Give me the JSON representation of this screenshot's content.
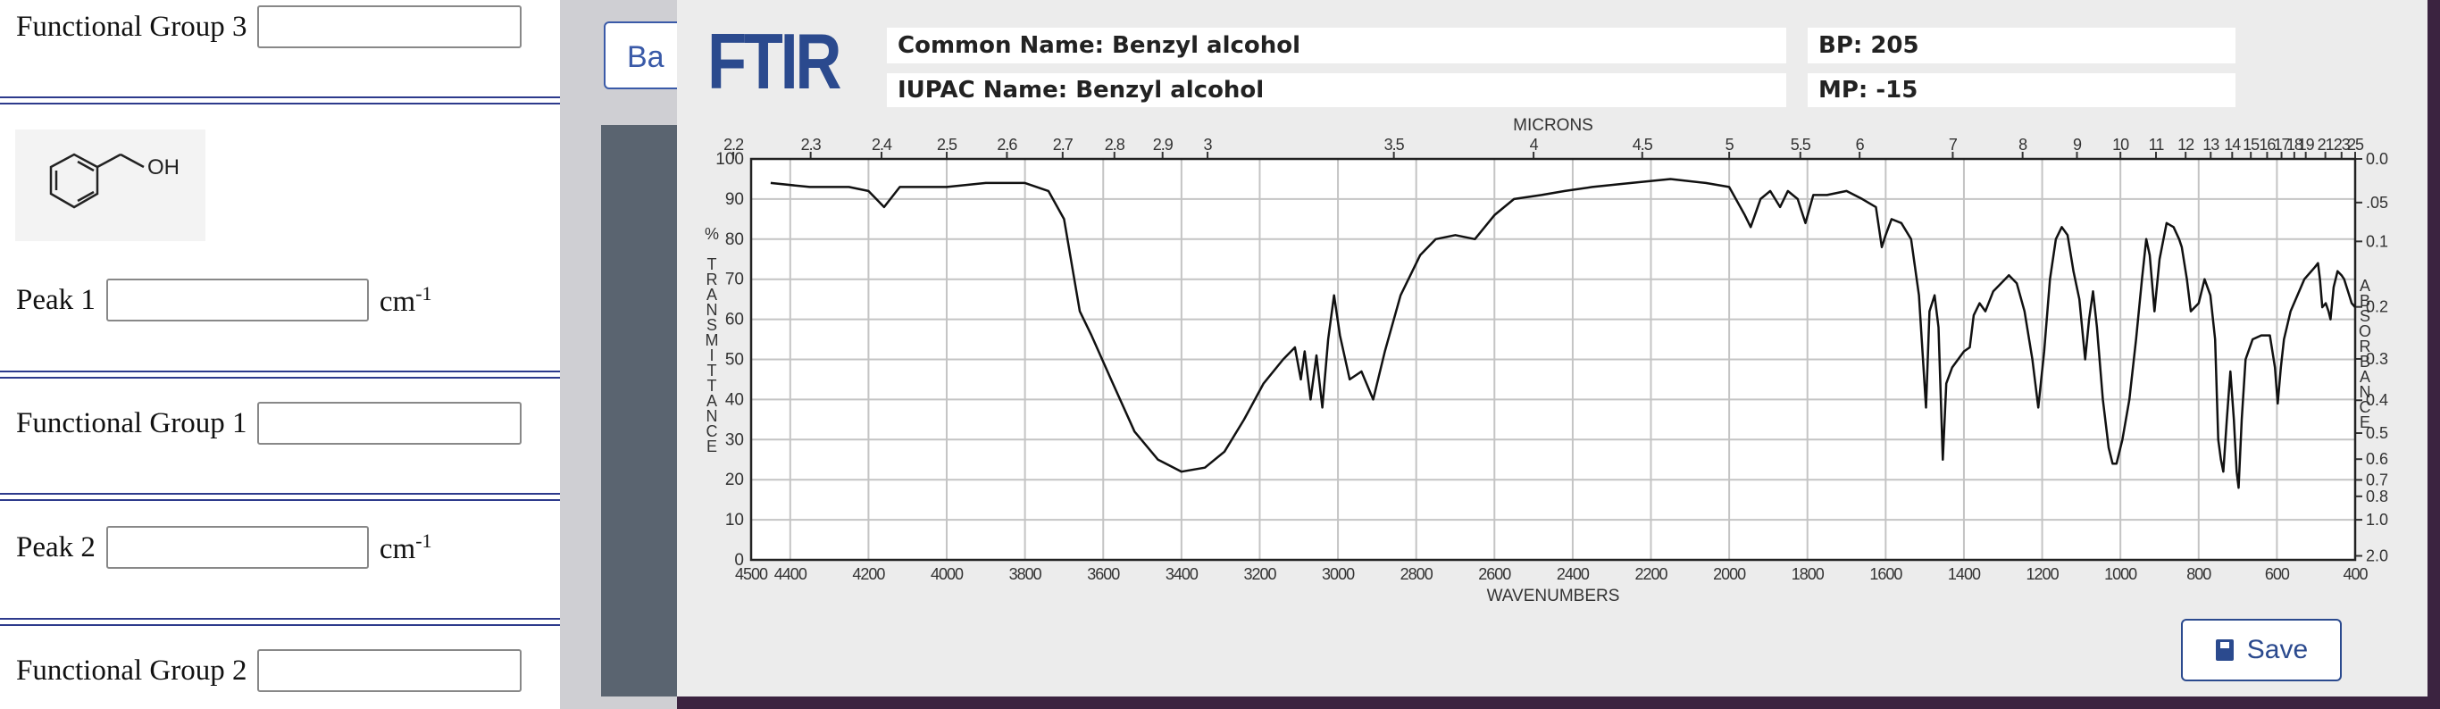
{
  "form": {
    "items": [
      {
        "label": "Functional Group 3"
      },
      {
        "label": "Peak 1",
        "unit": "cm",
        "unit_sup": "-1"
      },
      {
        "label": "Functional Group 1"
      },
      {
        "label": "Peak 2",
        "unit": "cm",
        "unit_sup": "-1"
      },
      {
        "label": "Functional Group 2"
      }
    ],
    "molecule_label": "OH"
  },
  "background": {
    "button": "Ba"
  },
  "ftir": {
    "logo": "FTIR",
    "common_name": "Common Name: Benzyl alcohol",
    "iupac_name": "IUPAC Name: Benzyl alcohol",
    "bp": "BP: 205",
    "mp": "MP: -15",
    "save": "Save",
    "chart": {
      "type": "line",
      "xlabel": "WAVENUMBERS",
      "top_label": "MICRONS",
      "ylabel": "% TRANSMITTANCE",
      "y2label": "ABSORBANCE",
      "color": "#111111",
      "grid": true,
      "xlim": [
        4500,
        400
      ],
      "xticks": [
        4500,
        4400,
        4200,
        4000,
        3800,
        3600,
        3400,
        3200,
        3000,
        2800,
        2600,
        2400,
        2200,
        2000,
        1800,
        1600,
        1400,
        1200,
        1000,
        800,
        600,
        400
      ],
      "top_ticks": [
        2.2,
        2.3,
        2.4,
        2.5,
        2.6,
        2.7,
        2.8,
        2.9,
        3,
        3.5,
        4,
        4.5,
        5,
        5.5,
        6,
        7,
        8,
        9,
        10,
        11,
        12,
        13,
        14,
        15,
        16,
        17,
        18,
        19,
        21,
        23,
        25
      ],
      "ylim": [
        0,
        100
      ],
      "yticks": [
        0,
        10,
        20,
        30,
        40,
        50,
        60,
        70,
        80,
        90,
        100
      ],
      "y2ticks": [
        {
          "value": 0,
          "label": "0.0"
        },
        {
          "value": 0.05,
          "label": ".05"
        },
        {
          "value": 0.1,
          "label": "0.1"
        },
        0.2,
        0.3,
        0.4,
        0.5,
        0.6,
        0.7,
        0.8,
        {
          "value": 1,
          "label": "1.0"
        },
        {
          "value": 2,
          "label": "2.0"
        }
      ],
      "x": [
        4450,
        4350,
        4250,
        4200,
        4160,
        4120,
        4000,
        3900,
        3800,
        3740,
        3700,
        3660,
        3630,
        3580,
        3520,
        3460,
        3400,
        3340,
        3290,
        3240,
        3190,
        3140,
        3110,
        3095,
        3085,
        3070,
        3055,
        3040,
        3025,
        3010,
        2995,
        2970,
        2940,
        2910,
        2880,
        2840,
        2790,
        2750,
        2700,
        2650,
        2600,
        2550,
        2480,
        2420,
        2350,
        2250,
        2150,
        2060,
        2000,
        1960,
        1945,
        1920,
        1895,
        1870,
        1850,
        1825,
        1805,
        1785,
        1750,
        1700,
        1660,
        1625,
        1610,
        1600,
        1585,
        1560,
        1535,
        1515,
        1497,
        1488,
        1475,
        1465,
        1454,
        1445,
        1430,
        1415,
        1400,
        1385,
        1375,
        1360,
        1345,
        1325,
        1305,
        1285,
        1265,
        1245,
        1225,
        1210,
        1195,
        1180,
        1165,
        1150,
        1135,
        1120,
        1105,
        1090,
        1080,
        1070,
        1060,
        1045,
        1030,
        1020,
        1010,
        995,
        977,
        960,
        945,
        934,
        925,
        913,
        900,
        882,
        864,
        850,
        843,
        830,
        820,
        810,
        800,
        785,
        770,
        758,
        750,
        743,
        737,
        728,
        719,
        710,
        703,
        698,
        690,
        680,
        662,
        640,
        618,
        605,
        598,
        590,
        582,
        565,
        530,
        503,
        495,
        490,
        484,
        475,
        468,
        463,
        455,
        445,
        435,
        428,
        415,
        409,
        400
      ],
      "values": [
        94,
        93,
        93,
        92,
        88,
        93,
        93,
        94,
        94,
        92,
        85,
        62,
        56,
        45,
        32,
        25,
        22,
        23,
        27,
        35,
        44,
        50,
        53,
        45,
        52,
        40,
        51,
        38,
        55,
        66,
        56,
        45,
        47,
        40,
        52,
        66,
        76,
        80,
        81,
        80,
        86,
        90,
        91,
        92,
        93,
        94,
        95,
        94,
        93,
        86,
        83,
        90,
        92,
        88,
        92,
        90,
        84,
        91,
        91,
        92,
        90,
        88,
        78,
        81,
        85,
        84,
        80,
        66,
        38,
        62,
        66,
        58,
        25,
        44,
        48,
        50,
        52,
        53,
        61,
        64,
        62,
        67,
        69,
        71,
        69,
        62,
        50,
        38,
        52,
        70,
        80,
        83,
        81,
        72,
        65,
        50,
        60,
        67,
        58,
        40,
        28,
        24,
        24,
        30,
        40,
        55,
        70,
        80,
        76,
        62,
        75,
        84,
        83,
        80,
        78,
        70,
        62,
        63,
        64,
        70,
        66,
        55,
        30,
        25,
        22,
        35,
        47,
        35,
        22,
        18,
        35,
        50,
        55,
        56,
        56,
        48,
        39,
        48,
        55,
        62,
        70,
        73,
        74,
        70,
        63,
        64,
        62,
        60,
        68,
        72,
        71,
        70,
        66,
        64,
        63
      ]
    }
  }
}
